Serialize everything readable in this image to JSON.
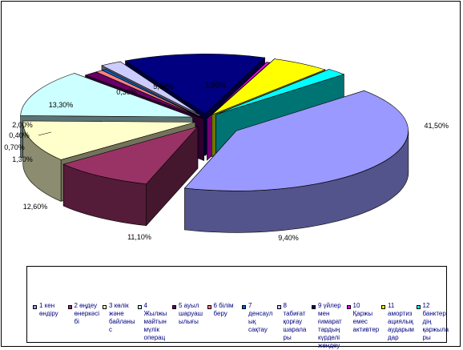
{
  "chart_data": {
    "type": "pie",
    "title": "",
    "categories": [
      "1 кен өндіру",
      "2 өңдеу өнеркәсібі",
      "3 көлік және байланыс",
      "4 Жылжымайтын мүлік операц",
      "5 ауыл шаруашылығы",
      "6 білім беру",
      "7 денсаулық сақтау",
      "8 табиғат қорғау шаралары",
      "9 үйлер мен ғимараттардың күрделі жөндеу",
      "10 Қаржы емес активтер",
      "11 амортизациялық аударымдар",
      "12 банктердің қаржылары"
    ],
    "values": [
      41.5,
      9.4,
      11.1,
      12.6,
      1.3,
      0.7,
      0.4,
      2.0,
      13.3,
      0.3,
      5.5,
      1.9
    ],
    "data_labels": [
      "41,50%",
      "9,40%",
      "11,10%",
      "12,60%",
      "1,30%",
      "0,70%",
      "0,40%",
      "2,00%",
      "13,30%",
      "0,30%",
      "5,50%",
      "1,90%"
    ],
    "legend_position": "bottom",
    "colors": [
      "#9999ff",
      "#993366",
      "#ffffcc",
      "#ccffff",
      "#660066",
      "#ff8080",
      "#0066cc",
      "#ccccff",
      "#000080",
      "#ff00ff",
      "#ffff00",
      "#00ffff"
    ]
  }
}
